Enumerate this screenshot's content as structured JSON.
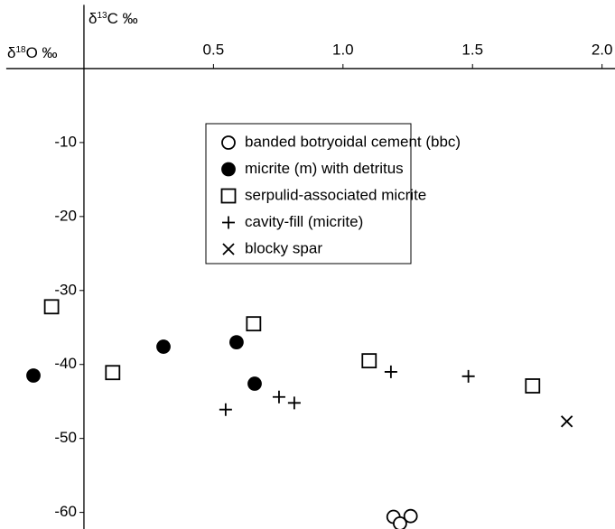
{
  "chart_data": {
    "type": "scatter",
    "x_label": [
      "δ",
      "13",
      "C ‰"
    ],
    "y_label": [
      "δ",
      "18",
      "O ‰"
    ],
    "xlim": [
      -0.3,
      2.05
    ],
    "ylim": [
      -62,
      8
    ],
    "xticks": [
      0.5,
      {
        "value": 1.0,
        "label": "1.0"
      },
      1.5,
      {
        "value": 2.0,
        "label": "2.0"
      }
    ],
    "yticks": [
      -10,
      -20,
      -30,
      -40,
      -50,
      -60
    ],
    "legend": "top-center",
    "series": [
      {
        "name": "banded botryoidal cement (bbc)",
        "marker": "circle-open",
        "color": "#000000",
        "x": [
          1.195,
          1.22,
          1.261
        ],
        "values": [
          -60.6,
          -61.5,
          -60.5
        ]
      },
      {
        "name": "micrite (m) with detritus",
        "marker": "circle",
        "color": "#000000",
        "x": [
          -0.195,
          0.307,
          0.589,
          0.659
        ],
        "values": [
          -41.5,
          -37.6,
          -37.0,
          -42.6
        ]
      },
      {
        "name": "serpulid-associated micrite",
        "marker": "square",
        "color": "#000000",
        "x": [
          -0.125,
          0.111,
          0.655,
          1.101,
          1.732
        ],
        "values": [
          -32.2,
          -41.1,
          -34.5,
          -39.5,
          -42.9
        ]
      },
      {
        "name": "cavity-fill (micrite)",
        "marker": "plus",
        "color": "#000000",
        "x": [
          0.547,
          0.753,
          0.812,
          1.185,
          1.484
        ],
        "values": [
          -46.1,
          -44.4,
          -45.2,
          -41.0,
          -41.6
        ]
      },
      {
        "name": "blocky spar",
        "marker": "x",
        "color": "#000000",
        "x": [
          1.864
        ],
        "values": [
          -47.7
        ]
      }
    ]
  }
}
